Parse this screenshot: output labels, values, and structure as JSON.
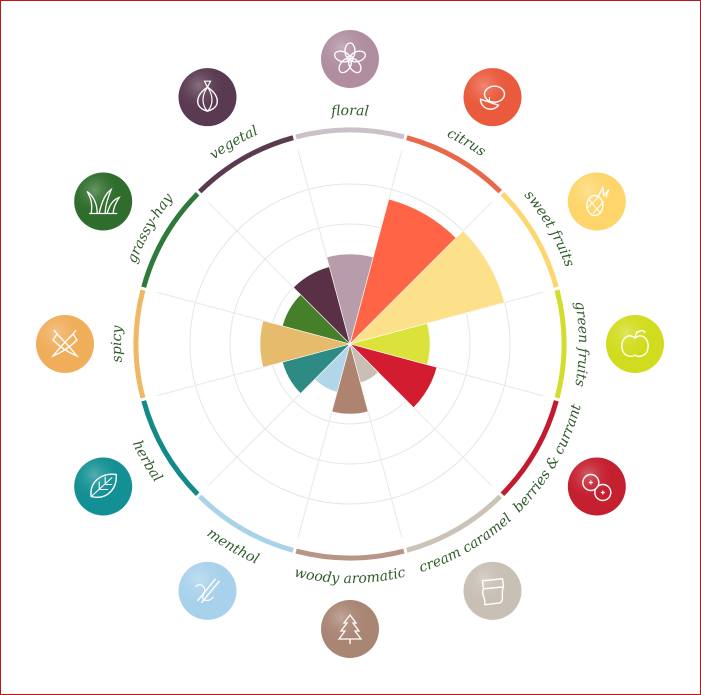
{
  "chart_data": {
    "type": "polar-area",
    "title": "",
    "scale_max": 10,
    "grid_rings": [
      2,
      4,
      6,
      8
    ],
    "categories": [
      {
        "label": "floral",
        "value": 4.5,
        "color": "#b79da9",
        "ring_color": "#ccc1c8",
        "icon": "flower-icon",
        "icon_bg": "#b08ea0"
      },
      {
        "label": "citrus",
        "value": 7.5,
        "color": "#ff6446",
        "ring_color": "#e8694a",
        "icon": "lemon-icon",
        "icon_bg": "#ea5a3c"
      },
      {
        "label": "sweet fruits",
        "value": 8.0,
        "color": "#fde08a",
        "ring_color": "#fdd66f",
        "icon": "pineapple-icon",
        "icon_bg": "#fdd56a"
      },
      {
        "label": "green fruits",
        "value": 4.0,
        "color": "#dbe23a",
        "ring_color": "#d4dd2d",
        "icon": "apple-icon",
        "icon_bg": "#d2dc1e"
      },
      {
        "label": "berries & currant",
        "value": 4.5,
        "color": "#d31c2f",
        "ring_color": "#c31a2e",
        "icon": "berries-icon",
        "icon_bg": "#c4202f"
      },
      {
        "label": "cream caramel",
        "value": 2.0,
        "color": "#c9bfb4",
        "ring_color": "#cbc2b8",
        "icon": "caramel-icon",
        "icon_bg": "#c8bfb5"
      },
      {
        "label": "woody aromatic",
        "value": 3.5,
        "color": "#ae8471",
        "ring_color": "#b89586",
        "icon": "tree-icon",
        "icon_bg": "#a98574"
      },
      {
        "label": "menthol",
        "value": 2.5,
        "color": "#b1d6ea",
        "ring_color": "#aad3ea",
        "icon": "menthol-icon",
        "icon_bg": "#a8d2ec"
      },
      {
        "label": "herbal",
        "value": 3.5,
        "color": "#2d8b83",
        "ring_color": "#138a8a",
        "icon": "leaf-icon",
        "icon_bg": "#139094"
      },
      {
        "label": "spicy",
        "value": 4.5,
        "color": "#e6bb6c",
        "ring_color": "#f0b766",
        "icon": "chili-icon",
        "icon_bg": "#f0ad5a"
      },
      {
        "label": "grassy-hay",
        "value": 3.5,
        "color": "#467f2a",
        "ring_color": "#2e7a3b",
        "icon": "grass-icon",
        "icon_bg": "#2f6d2c"
      },
      {
        "label": "vegetal",
        "value": 4.0,
        "color": "#5a3046",
        "ring_color": "#5a3a4e",
        "icon": "onion-icon",
        "icon_bg": "#5a3a50"
      }
    ]
  }
}
